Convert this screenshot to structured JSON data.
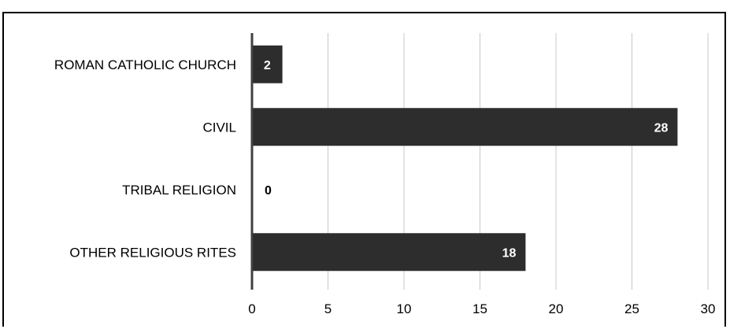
{
  "chart_data": {
    "type": "bar",
    "orientation": "horizontal",
    "title": "",
    "categories": [
      "ROMAN CATHOLIC CHURCH",
      "CIVIL",
      "TRIBAL RELIGION",
      "OTHER RELIGIOUS RITES"
    ],
    "values": [
      2,
      28,
      0,
      18
    ],
    "data_labels": [
      "2",
      "28",
      "0",
      "18"
    ],
    "xlim": [
      0,
      30
    ],
    "x_ticks": [
      0,
      5,
      10,
      15,
      20,
      25,
      30
    ],
    "x_tick_labels": [
      "0",
      "5",
      "10",
      "15",
      "20",
      "25",
      "30"
    ],
    "grid": true,
    "legend": "none",
    "colors": {
      "bar": "#2d2d2d",
      "inside_label": "#ffffff",
      "outside_label": "#000000",
      "grid": "#c8c8c8",
      "axis": "#404040"
    }
  }
}
